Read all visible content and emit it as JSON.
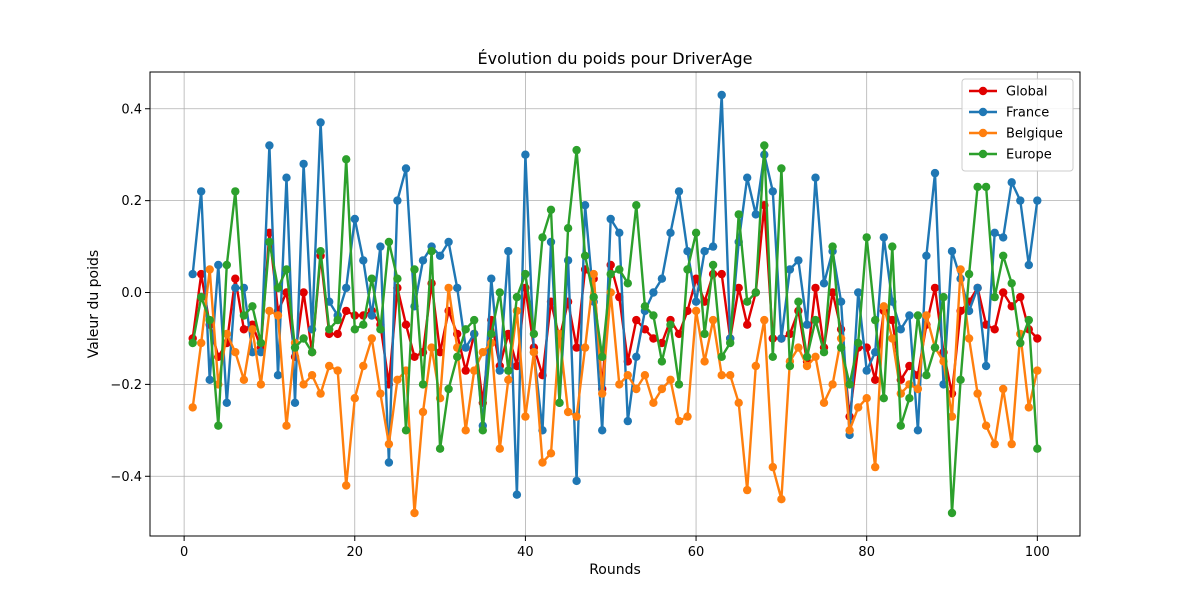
{
  "chart_data": {
    "type": "line",
    "title": "Évolution du poids pour DriverAge",
    "xlabel": "Rounds",
    "ylabel": "Valeur du poids",
    "xlim": [
      -4,
      105
    ],
    "ylim": [
      -0.53,
      0.48
    ],
    "xticks": [
      0,
      20,
      40,
      60,
      80,
      100
    ],
    "xtick_labels": [
      "0",
      "20",
      "40",
      "60",
      "80",
      "100"
    ],
    "yticks": [
      -0.4,
      -0.2,
      0.0,
      0.2,
      0.4
    ],
    "ytick_labels": [
      "−0.4",
      "−0.2",
      "0.0",
      "0.2",
      "0.4"
    ],
    "grid": true,
    "legend_position": "top-right",
    "x": [
      1,
      2,
      3,
      4,
      5,
      6,
      7,
      8,
      9,
      10,
      11,
      12,
      13,
      14,
      15,
      16,
      17,
      18,
      19,
      20,
      21,
      22,
      23,
      24,
      25,
      26,
      27,
      28,
      29,
      30,
      31,
      32,
      33,
      34,
      35,
      36,
      37,
      38,
      39,
      40,
      41,
      42,
      43,
      44,
      45,
      46,
      47,
      48,
      49,
      50,
      51,
      52,
      53,
      54,
      55,
      56,
      57,
      58,
      59,
      60,
      61,
      62,
      63,
      64,
      65,
      66,
      67,
      68,
      69,
      70,
      71,
      72,
      73,
      74,
      75,
      76,
      77,
      78,
      79,
      80,
      81,
      82,
      83,
      84,
      85,
      86,
      87,
      88,
      89,
      90,
      91,
      92,
      93,
      94,
      95,
      96,
      97,
      98,
      99,
      100
    ],
    "series": [
      {
        "name": "Global",
        "color": "#e00000",
        "values": [
          -0.1,
          0.04,
          -0.07,
          -0.14,
          -0.11,
          0.03,
          -0.08,
          -0.07,
          -0.12,
          0.13,
          -0.04,
          0.0,
          -0.14,
          0.0,
          -0.13,
          0.08,
          -0.09,
          -0.09,
          -0.04,
          -0.05,
          -0.05,
          -0.04,
          -0.07,
          -0.2,
          0.01,
          -0.07,
          -0.14,
          -0.13,
          0.02,
          -0.13,
          -0.04,
          -0.09,
          -0.17,
          -0.09,
          -0.24,
          -0.06,
          -0.16,
          -0.09,
          -0.16,
          0.01,
          -0.12,
          -0.18,
          -0.02,
          -0.1,
          -0.02,
          -0.12,
          0.05,
          0.03,
          -0.21,
          0.06,
          -0.01,
          -0.15,
          -0.06,
          -0.08,
          -0.1,
          -0.11,
          -0.06,
          -0.09,
          -0.04,
          0.03,
          -0.02,
          0.04,
          0.04,
          -0.1,
          0.01,
          -0.07,
          0.0,
          0.19,
          -0.1,
          -0.1,
          -0.09,
          -0.04,
          -0.15,
          0.01,
          -0.12,
          0.0,
          -0.08,
          -0.27,
          -0.12,
          -0.12,
          -0.19,
          -0.04,
          -0.06,
          -0.19,
          -0.16,
          -0.18,
          -0.07,
          0.01,
          -0.13,
          -0.22,
          -0.04,
          -0.02,
          0.01,
          -0.07,
          -0.08,
          0.0,
          -0.03,
          -0.01,
          -0.08,
          -0.1
        ]
      },
      {
        "name": "France",
        "color": "#1f77b4",
        "values": [
          0.04,
          0.22,
          -0.19,
          0.06,
          -0.24,
          0.01,
          0.01,
          -0.13,
          -0.13,
          0.32,
          -0.18,
          0.25,
          -0.24,
          0.28,
          -0.08,
          0.37,
          -0.02,
          -0.05,
          0.01,
          0.16,
          0.07,
          -0.05,
          0.1,
          -0.37,
          0.2,
          0.27,
          -0.03,
          0.07,
          0.1,
          0.08,
          0.11,
          0.01,
          -0.12,
          -0.09,
          -0.29,
          0.03,
          -0.17,
          0.09,
          -0.44,
          0.3,
          -0.13,
          -0.3,
          0.11,
          -0.24,
          0.07,
          -0.41,
          0.19,
          -0.02,
          -0.3,
          0.16,
          0.13,
          -0.28,
          -0.14,
          -0.04,
          0.0,
          0.03,
          0.13,
          0.22,
          0.09,
          -0.02,
          0.09,
          0.1,
          0.43,
          -0.1,
          0.11,
          0.25,
          0.17,
          0.3,
          0.22,
          -0.1,
          0.05,
          0.07,
          -0.07,
          0.25,
          0.02,
          0.09,
          -0.02,
          -0.31,
          0.0,
          -0.17,
          -0.13,
          0.12,
          -0.02,
          -0.08,
          -0.05,
          -0.3,
          0.08,
          0.26,
          -0.2,
          0.09,
          0.03,
          -0.04,
          0.01,
          -0.16,
          0.13,
          0.12,
          0.24,
          0.2,
          0.06,
          0.2
        ]
      },
      {
        "name": "Belgique",
        "color": "#ff7f0e",
        "values": [
          -0.25,
          -0.11,
          0.05,
          -0.2,
          -0.09,
          -0.13,
          -0.19,
          -0.08,
          -0.2,
          -0.04,
          -0.05,
          -0.29,
          -0.11,
          -0.2,
          -0.18,
          -0.22,
          -0.16,
          -0.17,
          -0.42,
          -0.23,
          -0.16,
          -0.1,
          -0.22,
          -0.33,
          -0.19,
          -0.17,
          -0.48,
          -0.26,
          -0.12,
          -0.23,
          0.01,
          -0.12,
          -0.3,
          -0.17,
          -0.13,
          -0.11,
          -0.34,
          -0.19,
          -0.04,
          -0.27,
          -0.13,
          -0.37,
          -0.35,
          -0.09,
          -0.26,
          -0.27,
          -0.12,
          0.04,
          -0.22,
          0.0,
          -0.2,
          -0.18,
          -0.21,
          -0.18,
          -0.24,
          -0.21,
          -0.19,
          -0.28,
          -0.27,
          -0.04,
          -0.15,
          -0.06,
          -0.18,
          -0.18,
          -0.24,
          -0.43,
          -0.16,
          -0.06,
          -0.38,
          -0.45,
          -0.15,
          -0.12,
          -0.16,
          -0.14,
          -0.24,
          -0.2,
          -0.1,
          -0.3,
          -0.25,
          -0.23,
          -0.38,
          -0.03,
          -0.1,
          -0.22,
          -0.2,
          -0.21,
          -0.05,
          -0.12,
          -0.15,
          -0.27,
          0.05,
          -0.1,
          -0.22,
          -0.29,
          -0.33,
          -0.21,
          -0.33,
          -0.09,
          -0.25,
          -0.17
        ]
      },
      {
        "name": "Europe",
        "color": "#2ca02c",
        "values": [
          -0.11,
          -0.01,
          -0.06,
          -0.29,
          0.06,
          0.22,
          -0.05,
          -0.03,
          -0.11,
          0.11,
          0.01,
          0.05,
          -0.12,
          -0.1,
          -0.13,
          0.09,
          -0.08,
          -0.06,
          0.29,
          -0.08,
          -0.07,
          0.03,
          -0.08,
          0.11,
          0.03,
          -0.3,
          0.05,
          -0.2,
          0.09,
          -0.34,
          -0.21,
          -0.14,
          -0.08,
          -0.06,
          -0.3,
          -0.09,
          0.0,
          -0.17,
          -0.01,
          0.04,
          -0.09,
          0.12,
          0.18,
          -0.24,
          0.14,
          0.31,
          0.08,
          -0.01,
          -0.14,
          0.04,
          0.05,
          0.02,
          0.19,
          -0.03,
          -0.05,
          -0.15,
          -0.07,
          -0.2,
          0.05,
          0.13,
          -0.09,
          0.06,
          -0.14,
          -0.11,
          0.17,
          -0.02,
          0.0,
          0.32,
          -0.14,
          0.27,
          -0.16,
          -0.02,
          -0.14,
          -0.06,
          -0.13,
          0.1,
          -0.12,
          -0.2,
          -0.11,
          0.12,
          -0.06,
          -0.23,
          0.1,
          -0.29,
          -0.23,
          -0.05,
          -0.18,
          -0.12,
          -0.01,
          -0.48,
          -0.19,
          0.04,
          0.23,
          0.23,
          -0.01,
          0.08,
          0.02,
          -0.11,
          -0.06,
          -0.34
        ]
      }
    ]
  }
}
